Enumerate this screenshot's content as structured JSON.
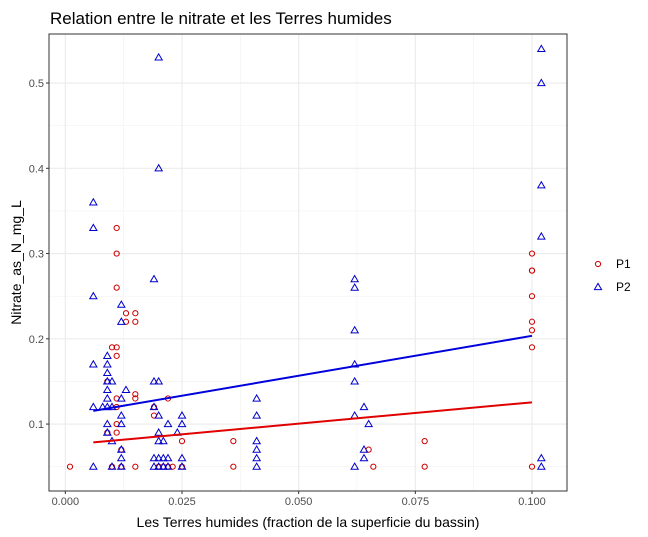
{
  "chart_data": {
    "type": "scatter",
    "title": "Relation entre le nitrate et les Terres humides",
    "xlabel": "Les Terres humides (fraction de la superficie du bassin)",
    "ylabel": "Nitrate_as_N_mg_L",
    "xlim": [
      -0.0035,
      0.1075
    ],
    "ylim": [
      0.0215,
      0.5575
    ],
    "x_ticks": [
      "0.000",
      "0.025",
      "0.050",
      "0.075",
      "0.100"
    ],
    "x_tick_values": [
      0,
      0.025,
      0.05,
      0.075,
      0.1
    ],
    "y_ticks": [
      "0.1",
      "0.2",
      "0.3",
      "0.4",
      "0.5"
    ],
    "y_tick_values": [
      0.1,
      0.2,
      0.3,
      0.4,
      0.5
    ],
    "grid": true,
    "legend_position": "right",
    "series": [
      {
        "name": "P1",
        "marker": "circle",
        "color": "#cc0000",
        "trend_color": "#e00000",
        "trend": [
          [
            0.006,
            0.0785
          ],
          [
            0.1,
            0.1255
          ]
        ],
        "points": [
          [
            0.001,
            0.05
          ],
          [
            0.009,
            0.09
          ],
          [
            0.009,
            0.15
          ],
          [
            0.01,
            0.19
          ],
          [
            0.01,
            0.05
          ],
          [
            0.011,
            0.33
          ],
          [
            0.011,
            0.3
          ],
          [
            0.011,
            0.26
          ],
          [
            0.011,
            0.19
          ],
          [
            0.011,
            0.18
          ],
          [
            0.011,
            0.13
          ],
          [
            0.011,
            0.12
          ],
          [
            0.011,
            0.1
          ],
          [
            0.011,
            0.09
          ],
          [
            0.012,
            0.07
          ],
          [
            0.012,
            0.05
          ],
          [
            0.013,
            0.23
          ],
          [
            0.013,
            0.22
          ],
          [
            0.015,
            0.23
          ],
          [
            0.015,
            0.22
          ],
          [
            0.015,
            0.135
          ],
          [
            0.015,
            0.13
          ],
          [
            0.015,
            0.05
          ],
          [
            0.019,
            0.12
          ],
          [
            0.019,
            0.11
          ],
          [
            0.02,
            0.05
          ],
          [
            0.021,
            0.05
          ],
          [
            0.022,
            0.05
          ],
          [
            0.022,
            0.13
          ],
          [
            0.023,
            0.05
          ],
          [
            0.025,
            0.08
          ],
          [
            0.025,
            0.05
          ],
          [
            0.036,
            0.05
          ],
          [
            0.036,
            0.08
          ],
          [
            0.065,
            0.07
          ],
          [
            0.066,
            0.05
          ],
          [
            0.077,
            0.05
          ],
          [
            0.077,
            0.08
          ],
          [
            0.1,
            0.3
          ],
          [
            0.1,
            0.28
          ],
          [
            0.1,
            0.28
          ],
          [
            0.1,
            0.25
          ],
          [
            0.1,
            0.22
          ],
          [
            0.1,
            0.21
          ],
          [
            0.1,
            0.19
          ],
          [
            0.1,
            0.05
          ]
        ]
      },
      {
        "name": "P2",
        "marker": "triangle",
        "color": "#0000cc",
        "trend_color": "#0000dd",
        "trend": [
          [
            0.006,
            0.1155
          ],
          [
            0.1,
            0.2035
          ]
        ],
        "points": [
          [
            0.006,
            0.36
          ],
          [
            0.006,
            0.33
          ],
          [
            0.006,
            0.25
          ],
          [
            0.006,
            0.17
          ],
          [
            0.006,
            0.12
          ],
          [
            0.006,
            0.05
          ],
          [
            0.008,
            0.12
          ],
          [
            0.009,
            0.18
          ],
          [
            0.009,
            0.17
          ],
          [
            0.009,
            0.16
          ],
          [
            0.009,
            0.15
          ],
          [
            0.009,
            0.14
          ],
          [
            0.009,
            0.13
          ],
          [
            0.009,
            0.12
          ],
          [
            0.009,
            0.1
          ],
          [
            0.009,
            0.09
          ],
          [
            0.01,
            0.15
          ],
          [
            0.01,
            0.12
          ],
          [
            0.01,
            0.08
          ],
          [
            0.01,
            0.05
          ],
          [
            0.012,
            0.24
          ],
          [
            0.012,
            0.22
          ],
          [
            0.012,
            0.13
          ],
          [
            0.012,
            0.11
          ],
          [
            0.012,
            0.1
          ],
          [
            0.012,
            0.07
          ],
          [
            0.012,
            0.06
          ],
          [
            0.012,
            0.05
          ],
          [
            0.013,
            0.14
          ],
          [
            0.019,
            0.27
          ],
          [
            0.019,
            0.15
          ],
          [
            0.019,
            0.12
          ],
          [
            0.019,
            0.06
          ],
          [
            0.019,
            0.05
          ],
          [
            0.02,
            0.53
          ],
          [
            0.02,
            0.4
          ],
          [
            0.02,
            0.15
          ],
          [
            0.02,
            0.11
          ],
          [
            0.02,
            0.09
          ],
          [
            0.02,
            0.08
          ],
          [
            0.02,
            0.06
          ],
          [
            0.02,
            0.05
          ],
          [
            0.021,
            0.08
          ],
          [
            0.021,
            0.06
          ],
          [
            0.021,
            0.05
          ],
          [
            0.022,
            0.1
          ],
          [
            0.022,
            0.06
          ],
          [
            0.022,
            0.05
          ],
          [
            0.024,
            0.09
          ],
          [
            0.025,
            0.11
          ],
          [
            0.025,
            0.1
          ],
          [
            0.025,
            0.06
          ],
          [
            0.025,
            0.05
          ],
          [
            0.041,
            0.13
          ],
          [
            0.041,
            0.11
          ],
          [
            0.041,
            0.08
          ],
          [
            0.041,
            0.07
          ],
          [
            0.041,
            0.06
          ],
          [
            0.041,
            0.05
          ],
          [
            0.062,
            0.27
          ],
          [
            0.062,
            0.26
          ],
          [
            0.062,
            0.21
          ],
          [
            0.062,
            0.17
          ],
          [
            0.062,
            0.15
          ],
          [
            0.062,
            0.11
          ],
          [
            0.062,
            0.05
          ],
          [
            0.064,
            0.12
          ],
          [
            0.064,
            0.07
          ],
          [
            0.064,
            0.06
          ],
          [
            0.065,
            0.1
          ],
          [
            0.102,
            0.54
          ],
          [
            0.102,
            0.5
          ],
          [
            0.102,
            0.38
          ],
          [
            0.102,
            0.32
          ],
          [
            0.102,
            0.06
          ],
          [
            0.102,
            0.05
          ]
        ]
      }
    ]
  }
}
